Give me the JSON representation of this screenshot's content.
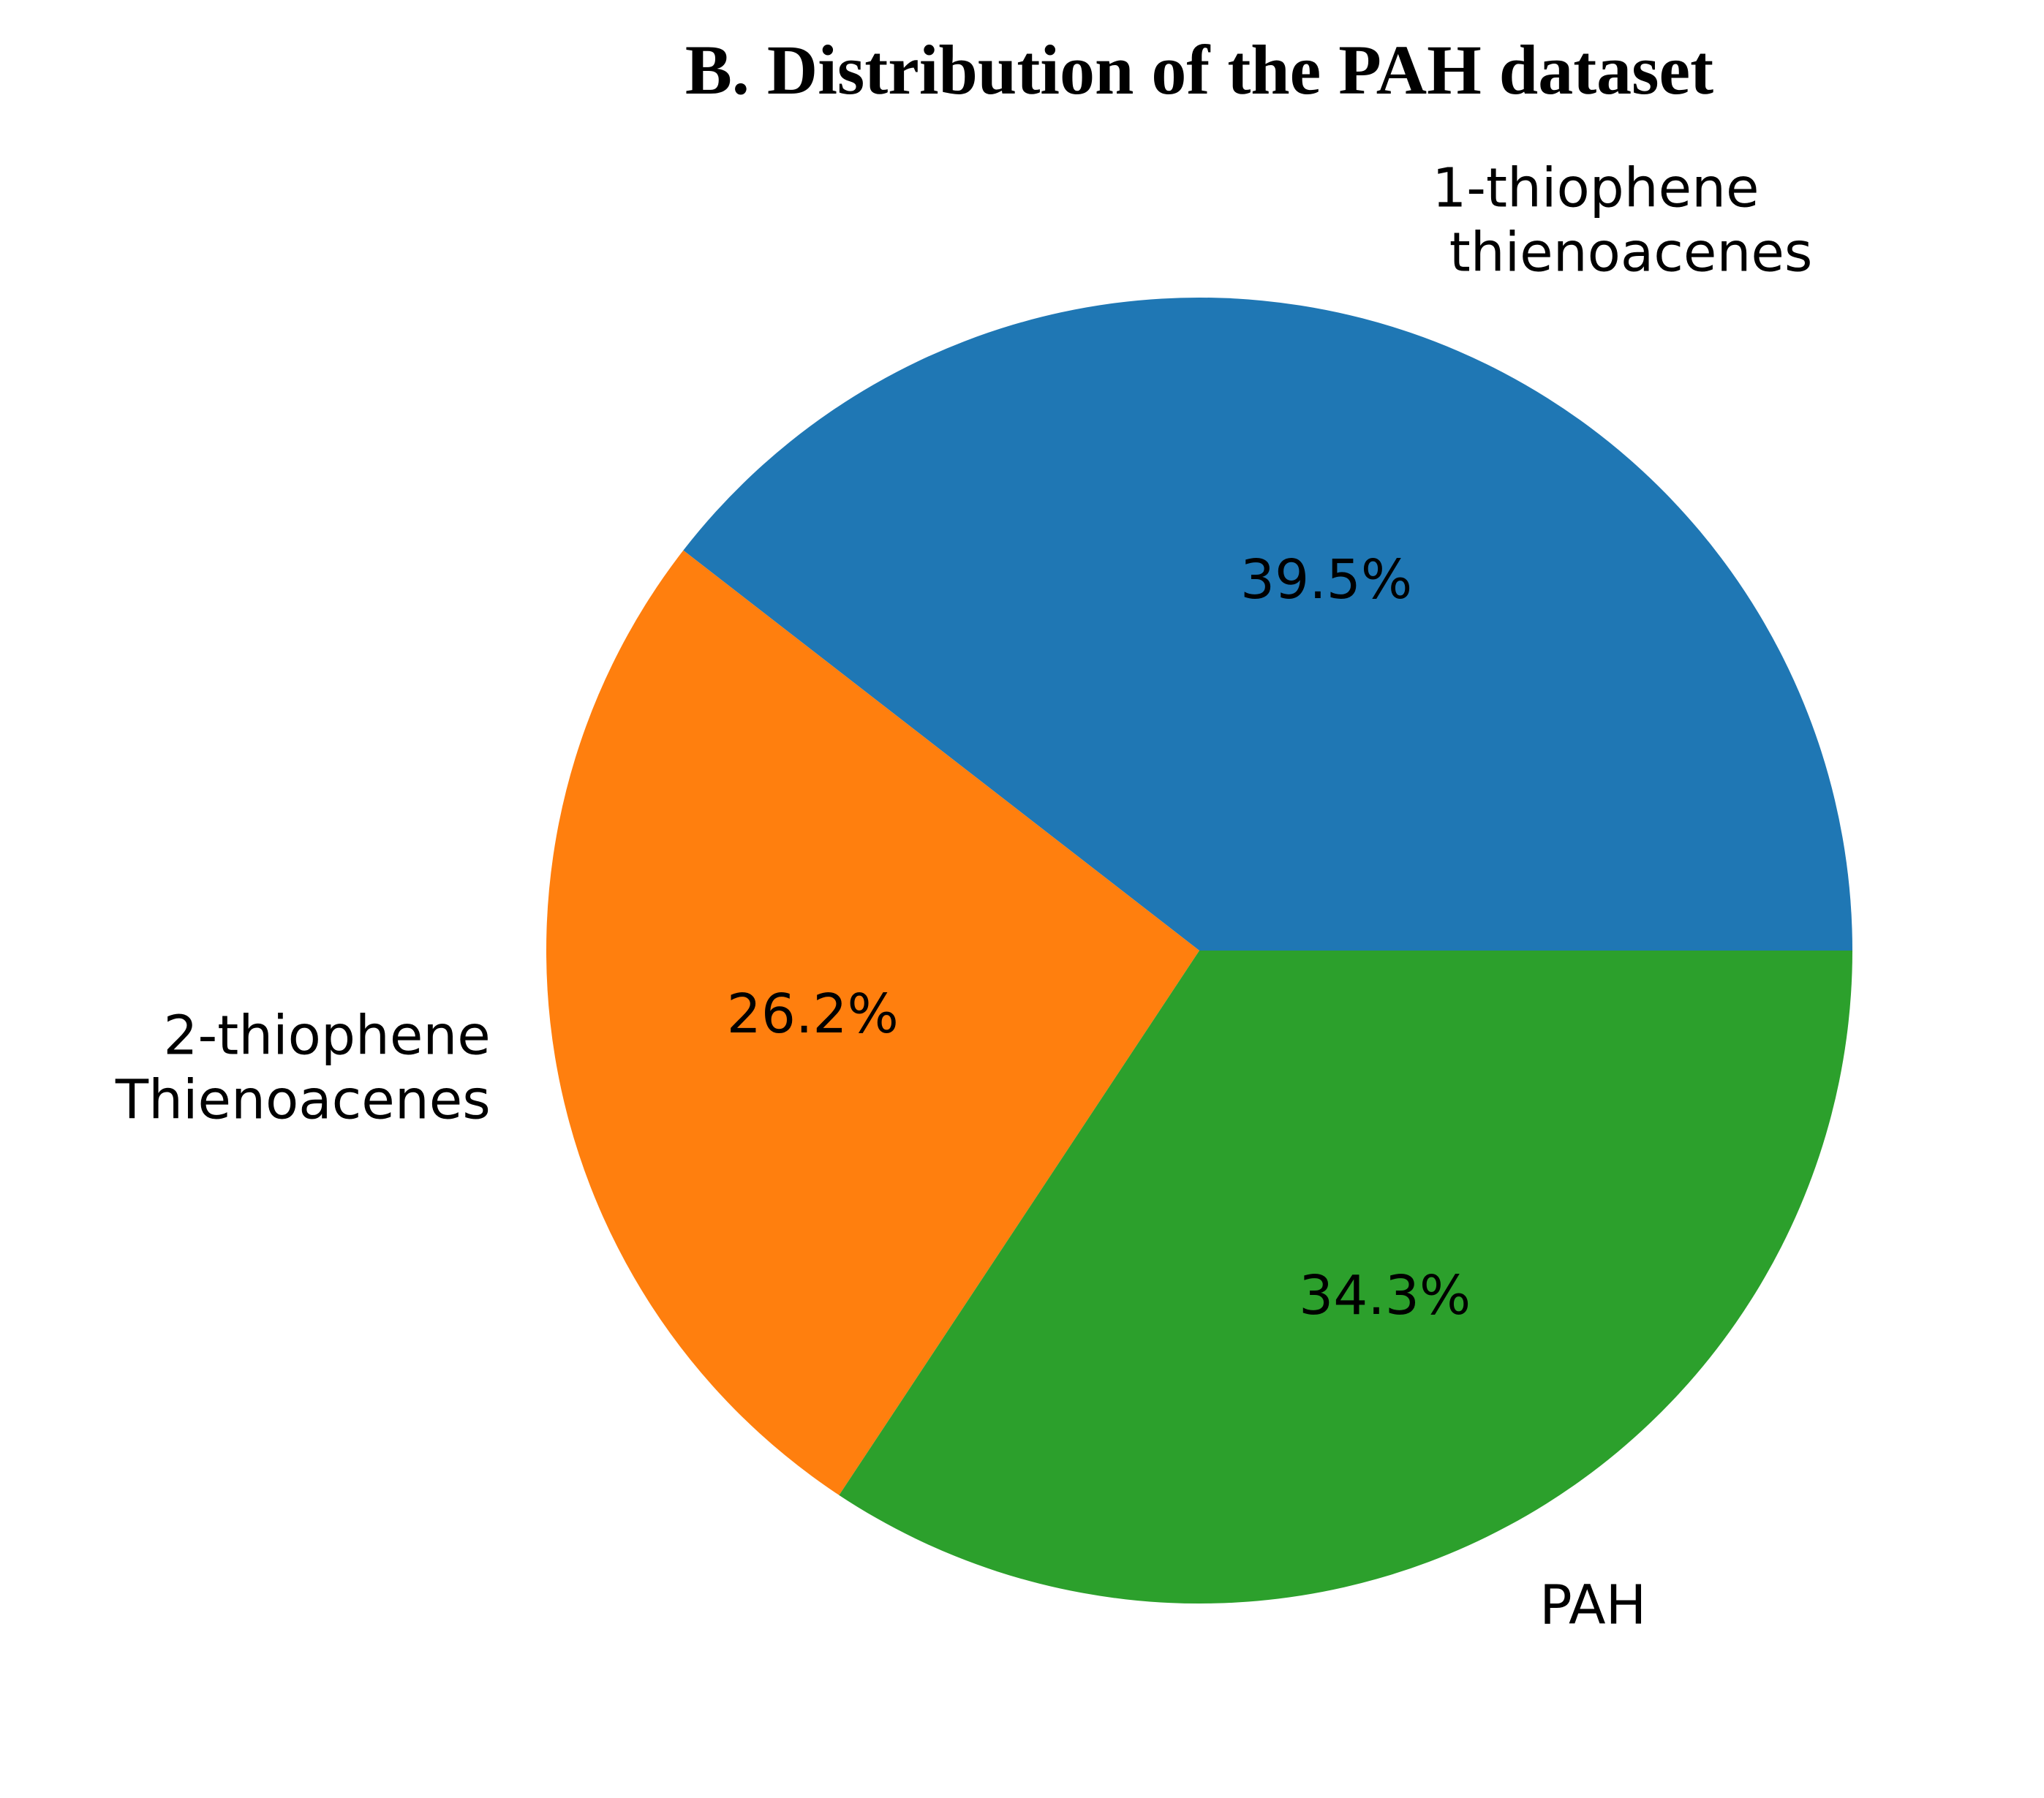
{
  "chart_data": {
    "type": "pie",
    "title": "B. Distribution of the PAH dataset",
    "slices": [
      {
        "label_lines": [
          "1-thiophene",
          " thienoacenes"
        ],
        "value": 39.5,
        "pct_label": "39.5%",
        "color": "#1f77b4"
      },
      {
        "label_lines": [
          "2-thiophene",
          "Thienoacenes"
        ],
        "value": 26.2,
        "pct_label": "26.2%",
        "color": "#ff7f0e"
      },
      {
        "label_lines": [
          "PAH"
        ],
        "value": 34.3,
        "pct_label": "34.3%",
        "color": "#2ca02c"
      }
    ],
    "start_angle_deg": 0,
    "direction": "counterclockwise",
    "legend": "none"
  }
}
